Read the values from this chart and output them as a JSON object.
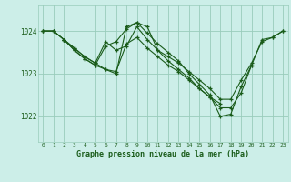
{
  "title": "Graphe pression niveau de la mer (hPa)",
  "bg_color": "#cceee8",
  "plot_bg_color": "#cceee8",
  "line_color": "#1a5c1a",
  "grid_color": "#99ccbb",
  "text_color": "#1a5c1a",
  "xlim": [
    -0.5,
    23.5
  ],
  "ylim": [
    1021.4,
    1024.6
  ],
  "yticks": [
    1022,
    1023,
    1024
  ],
  "xticks": [
    0,
    1,
    2,
    3,
    4,
    5,
    6,
    7,
    8,
    9,
    10,
    11,
    12,
    13,
    14,
    15,
    16,
    17,
    18,
    19,
    20,
    21,
    22,
    23
  ],
  "series": [
    {
      "x": [
        0,
        1,
        2,
        3,
        4,
        5,
        6,
        7,
        8,
        9,
        10,
        11,
        12,
        13,
        14,
        15,
        16,
        17,
        18,
        19,
        20,
        21,
        22,
        23
      ],
      "y": [
        1024.0,
        1024.0,
        1023.8,
        1023.6,
        1023.4,
        1023.25,
        1023.75,
        1023.55,
        1023.65,
        1024.1,
        1023.8,
        1023.55,
        1023.4,
        1023.25,
        1023.05,
        1022.85,
        1022.65,
        1022.4,
        1022.4,
        1022.85,
        1023.25,
        1023.75,
        1023.85,
        1024.0
      ]
    },
    {
      "x": [
        0,
        1,
        2,
        3,
        4,
        5,
        6,
        7,
        8,
        9,
        10,
        11,
        12,
        13,
        14,
        15,
        16,
        17,
        18,
        19,
        20
      ],
      "y": [
        1024.0,
        1024.0,
        1023.8,
        1023.55,
        1023.35,
        1023.2,
        1023.65,
        1023.75,
        1024.05,
        1024.2,
        1024.1,
        1023.55,
        1023.3,
        1023.1,
        1022.9,
        1022.65,
        1022.45,
        1022.2,
        1022.2,
        1022.55,
        1023.2
      ]
    },
    {
      "x": [
        0,
        1,
        2,
        3,
        4,
        5,
        6,
        7,
        8,
        9,
        10,
        11,
        12,
        13,
        14,
        15,
        16,
        17
      ],
      "y": [
        1024.0,
        1024.0,
        1023.8,
        1023.55,
        1023.35,
        1023.2,
        1023.1,
        1023.05,
        1023.7,
        1023.85,
        1023.6,
        1023.4,
        1023.2,
        1023.05,
        1022.85,
        1022.65,
        1022.45,
        1022.3
      ]
    },
    {
      "x": [
        2,
        3,
        4,
        5,
        6,
        7,
        8,
        9,
        10,
        11,
        12,
        13,
        14,
        15,
        16,
        17,
        18,
        19,
        20,
        21,
        22,
        23
      ],
      "y": [
        1023.8,
        1023.6,
        1023.4,
        1023.25,
        1023.1,
        1023.0,
        1024.1,
        1024.2,
        1023.95,
        1023.7,
        1023.5,
        1023.3,
        1023.0,
        1022.75,
        1022.5,
        1022.0,
        1022.05,
        1022.7,
        1023.2,
        1023.8,
        1023.85,
        1024.0
      ]
    }
  ]
}
